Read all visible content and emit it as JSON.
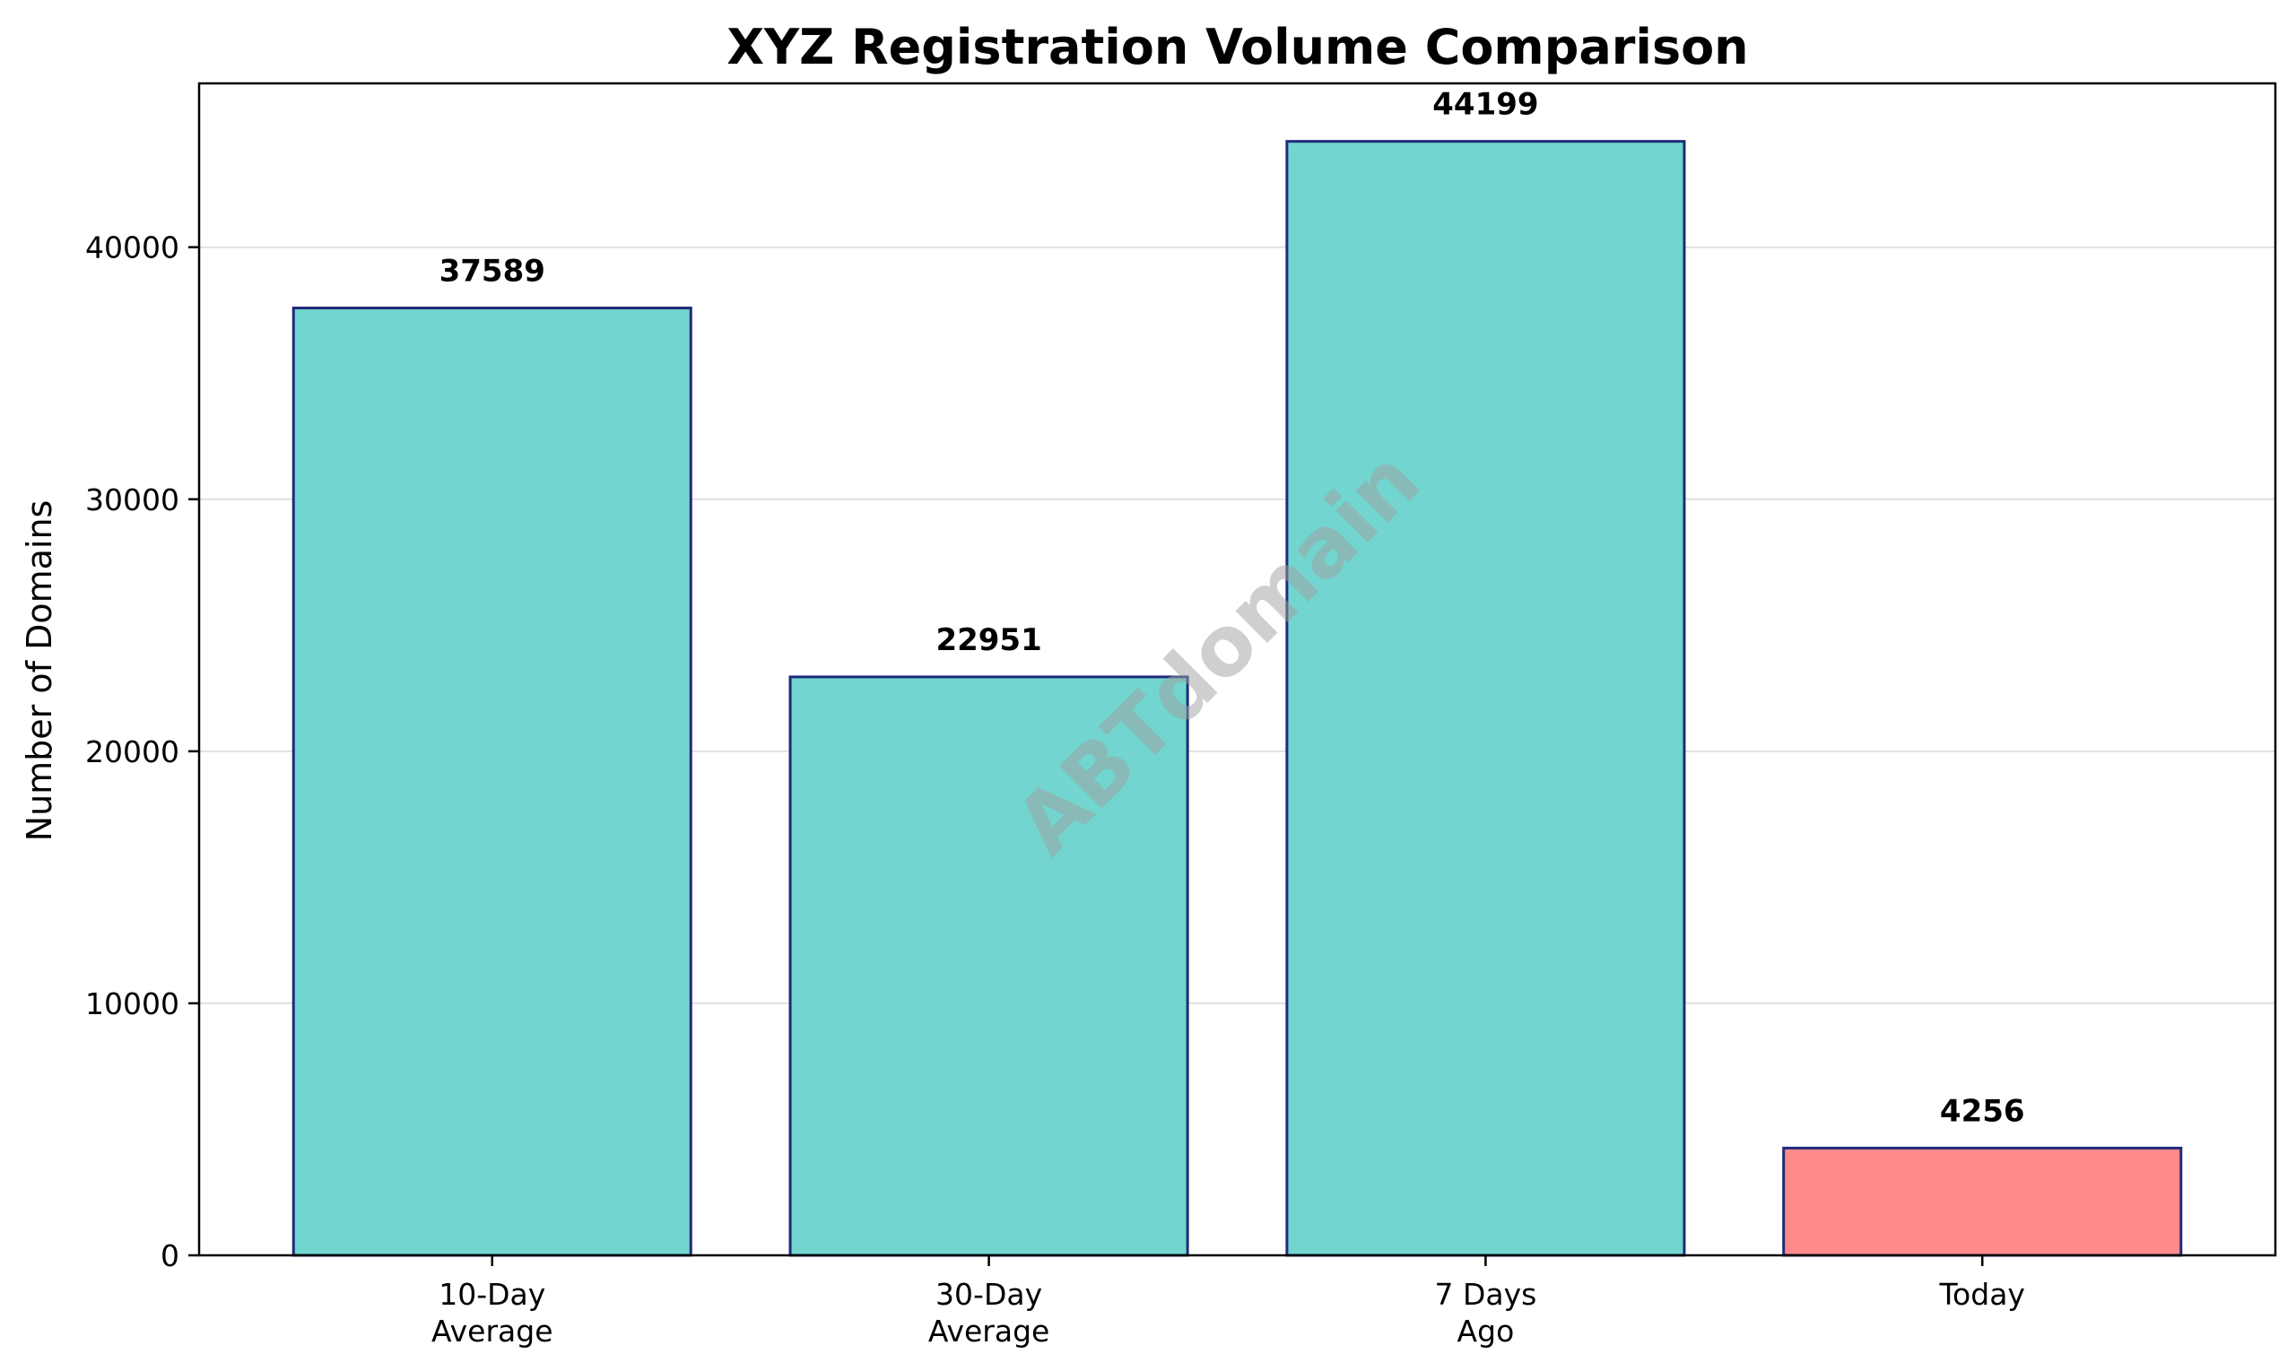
{
  "chart_data": {
    "type": "bar",
    "title": "XYZ Registration Volume Comparison",
    "xlabel": "",
    "ylabel": "Number of Domains",
    "categories": [
      [
        "10-Day",
        "Average"
      ],
      [
        "30-Day",
        "Average"
      ],
      [
        "7 Days",
        "Ago"
      ],
      [
        "Today"
      ]
    ],
    "values": [
      37589,
      22951,
      44199,
      4256
    ],
    "data_labels": [
      "37589",
      "22951",
      "44199",
      "4256"
    ],
    "bar_colors": [
      "#72d5cf",
      "#72d5cf",
      "#72d5cf",
      "#ff8a8a"
    ],
    "bar_edge_color": "#1f2a7a",
    "ylim": [
      0,
      46500
    ],
    "yticks": [
      0,
      10000,
      20000,
      30000,
      40000
    ],
    "ytick_labels": [
      "0",
      "10000",
      "20000",
      "30000",
      "40000"
    ],
    "grid": "y",
    "grid_color": "#e0e0e0",
    "legend": "none",
    "watermark": "ABTdomain"
  }
}
